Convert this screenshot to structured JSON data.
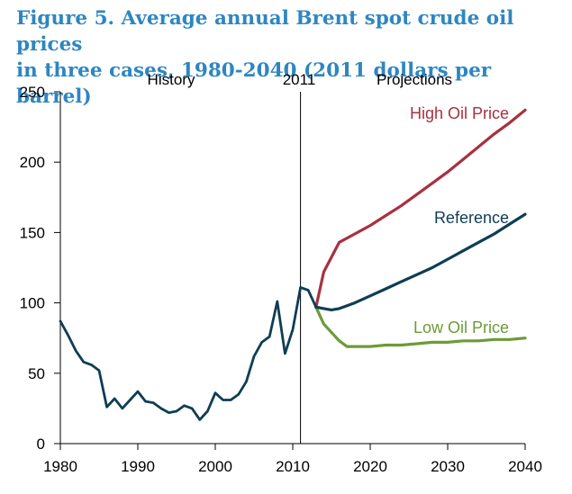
{
  "title": {
    "line1": "Figure 5. Average annual Brent spot crude oil prices",
    "line2": "in three cases, 1980-2040 (2011 dollars per barrel)"
  },
  "annotations": {
    "history": "History",
    "year_marker": "2011",
    "projections": "Projections"
  },
  "colors": {
    "title": "#2e86c1",
    "history": "#0f3d55",
    "reference": "#0f3d55",
    "high": "#a8313f",
    "low": "#6c9b37"
  },
  "chart_data": {
    "type": "line",
    "title": "Figure 5. Average annual Brent spot crude oil prices in three cases, 1980-2040 (2011 dollars per barrel)",
    "xlabel": "",
    "ylabel": "",
    "xlim": [
      1980,
      2040
    ],
    "ylim": [
      0,
      250
    ],
    "x_ticks": [
      1980,
      1990,
      2000,
      2010,
      2020,
      2030,
      2040
    ],
    "y_ticks": [
      0,
      50,
      100,
      150,
      200,
      250
    ],
    "grid": false,
    "vertical_marker": 2011,
    "series": [
      {
        "key": "history",
        "x": [
          1980,
          1981,
          1982,
          1983,
          1984,
          1985,
          1986,
          1987,
          1988,
          1989,
          1990,
          1991,
          1992,
          1993,
          1994,
          1995,
          1996,
          1997,
          1998,
          1999,
          2000,
          2001,
          2002,
          2003,
          2004,
          2005,
          2006,
          2007,
          2008,
          2009,
          2010,
          2011,
          2012,
          2013
        ],
        "y": [
          87,
          77,
          66,
          58,
          56,
          52,
          26,
          32,
          25,
          31,
          37,
          30,
          29,
          25,
          22,
          23,
          27,
          25,
          17,
          23,
          36,
          31,
          31,
          35,
          44,
          62,
          72,
          76,
          101,
          64,
          81,
          111,
          109,
          97
        ]
      },
      {
        "key": "high",
        "name": "High Oil Price",
        "x": [
          2013,
          2014,
          2016,
          2018,
          2020,
          2022,
          2024,
          2026,
          2028,
          2030,
          2032,
          2034,
          2036,
          2038,
          2040
        ],
        "y": [
          97,
          122,
          143,
          149,
          155,
          162,
          169,
          177,
          185,
          193,
          202,
          211,
          220,
          228,
          237
        ]
      },
      {
        "key": "reference",
        "name": "Reference",
        "x": [
          2013,
          2014,
          2015,
          2016,
          2018,
          2020,
          2022,
          2024,
          2026,
          2028,
          2030,
          2032,
          2034,
          2036,
          2038,
          2040
        ],
        "y": [
          97,
          96,
          95,
          96,
          100,
          105,
          110,
          115,
          120,
          125,
          131,
          137,
          143,
          149,
          156,
          163
        ]
      },
      {
        "key": "low",
        "name": "Low Oil Price",
        "x": [
          2013,
          2014,
          2015,
          2016,
          2017,
          2018,
          2020,
          2022,
          2024,
          2026,
          2028,
          2030,
          2032,
          2034,
          2036,
          2038,
          2040
        ],
        "y": [
          97,
          85,
          79,
          73,
          69,
          69,
          69,
          70,
          70,
          71,
          72,
          72,
          73,
          73,
          74,
          74,
          75
        ]
      }
    ]
  }
}
